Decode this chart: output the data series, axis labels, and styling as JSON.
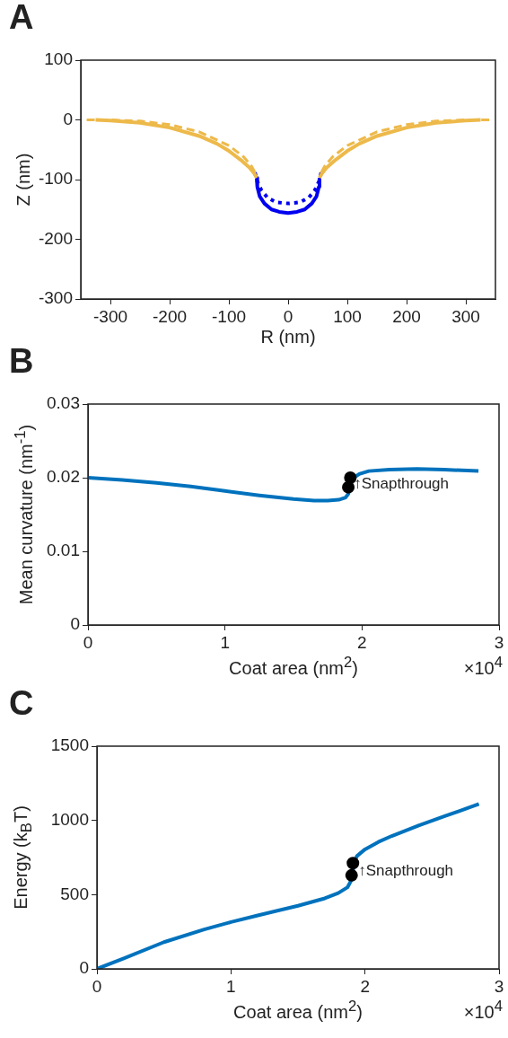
{
  "chart_data": [
    {
      "type": "line",
      "title": "A",
      "xlabel": "R (nm)",
      "ylabel": "Z (nm)",
      "xlim": [
        -350,
        350
      ],
      "ylim": [
        -300,
        100
      ],
      "xticks": [
        -300,
        -200,
        -100,
        0,
        100,
        200,
        300
      ],
      "yticks": [
        -300,
        -200,
        -100,
        0,
        100
      ],
      "grid": false,
      "legend": false,
      "series": [
        {
          "color": "#edb94a",
          "line_style": "solid",
          "marker": "none",
          "x": [
            -325,
            -300,
            -250,
            -200,
            -150,
            -120,
            -100,
            -80,
            -65,
            -57,
            -53,
            null,
            53,
            57,
            65,
            80,
            100,
            120,
            150,
            200,
            250,
            300,
            325
          ],
          "values": [
            0,
            -1,
            -5,
            -13,
            -27,
            -40,
            -52,
            -67,
            -80,
            -90,
            -97,
            null,
            -97,
            -90,
            -80,
            -67,
            -52,
            -40,
            -27,
            -13,
            -5,
            -1,
            0
          ]
        },
        {
          "color": "#edb94a",
          "line_style": "dashed",
          "marker": "none",
          "x": [
            -340,
            -300,
            -250,
            -200,
            -150,
            -100,
            -75,
            -62,
            -56,
            null,
            56,
            62,
            75,
            100,
            150,
            200,
            250,
            300,
            340
          ],
          "values": [
            0,
            0,
            -2,
            -8,
            -20,
            -43,
            -62,
            -77,
            -88,
            null,
            -88,
            -77,
            -62,
            -43,
            -20,
            -8,
            -2,
            0,
            0
          ]
        },
        {
          "color": "#0000f0",
          "line_style": "dotted",
          "marker": "none",
          "x": [
            -56,
            -52,
            -45,
            -35,
            -20,
            0,
            20,
            35,
            45,
            52,
            56
          ],
          "values": [
            -88,
            -103,
            -118,
            -130,
            -138,
            -140,
            -138,
            -130,
            -118,
            -103,
            -88
          ]
        },
        {
          "color": "#0000f0",
          "line_style": "solid",
          "marker": "none",
          "x": [
            -53,
            -52,
            -48,
            -40,
            -28,
            -15,
            0,
            15,
            28,
            40,
            48,
            52,
            53
          ],
          "values": [
            -97,
            -112,
            -128,
            -140,
            -150,
            -154,
            -156,
            -154,
            -150,
            -140,
            -128,
            -112,
            -97
          ]
        }
      ]
    },
    {
      "type": "line",
      "title": "B",
      "xlabel": "Coat area (nm$^{2}$)",
      "ylabel": "Mean curvature (nm$^{-1}$)",
      "xlim": [
        0,
        3
      ],
      "ylim": [
        0,
        0.03
      ],
      "xticks": [
        0,
        1,
        2,
        3
      ],
      "yticks": [
        0,
        0.01,
        0.02,
        0.03
      ],
      "grid": false,
      "legend": false,
      "annotations": [
        "×10$^{4}$",
        {
          "text": "↑Snapthrough",
          "x": 1.94,
          "y": 0.0191
        }
      ],
      "series": [
        {
          "color": "#0072bd",
          "line_style": "solid",
          "marker": "none",
          "x": [
            0,
            0.25,
            0.5,
            0.75,
            1,
            1.25,
            1.5,
            1.65,
            1.75,
            1.83,
            1.88,
            1.9,
            1.91,
            1.92,
            1.94,
            1.98,
            2.05,
            2.2,
            2.4,
            2.6,
            2.85
          ],
          "values": [
            0.02,
            0.0197,
            0.0193,
            0.0188,
            0.0182,
            0.0176,
            0.0171,
            0.0169,
            0.0169,
            0.017,
            0.0173,
            0.0178,
            0.0186,
            0.0194,
            0.02,
            0.0205,
            0.0209,
            0.0211,
            0.0212,
            0.0211,
            0.0209
          ]
        },
        {
          "type": "scatter",
          "color": "#000000",
          "marker": "circle",
          "x": [
            1.9,
            1.915
          ],
          "values": [
            0.0187,
            0.02
          ]
        }
      ]
    },
    {
      "type": "line",
      "title": "C",
      "xlabel": "Coat area (nm$^{2}$)",
      "ylabel": "Energy (k$_{B}$T)",
      "xlim": [
        0,
        3
      ],
      "ylim": [
        0,
        1500
      ],
      "xticks": [
        0,
        1,
        2,
        3
      ],
      "yticks": [
        0,
        500,
        1000,
        1500
      ],
      "grid": false,
      "legend": false,
      "annotations": [
        "×10$^{4}$",
        {
          "text": "↑Snapthrough",
          "x": 1.95,
          "y": 660
        }
      ],
      "series": [
        {
          "color": "#0072bd",
          "line_style": "solid",
          "marker": "none",
          "x": [
            0,
            0.2,
            0.5,
            0.8,
            1,
            1.2,
            1.5,
            1.7,
            1.8,
            1.87,
            1.9,
            1.91,
            1.92,
            1.94,
            2,
            2.1,
            2.2,
            2.4,
            2.6,
            2.85
          ],
          "values": [
            0,
            70,
            180,
            265,
            315,
            360,
            425,
            475,
            510,
            550,
            600,
            660,
            720,
            760,
            805,
            855,
            895,
            965,
            1030,
            1110
          ]
        },
        {
          "type": "scatter",
          "color": "#000000",
          "marker": "circle",
          "x": [
            1.9,
            1.91
          ],
          "values": [
            630,
            712
          ]
        }
      ]
    }
  ]
}
